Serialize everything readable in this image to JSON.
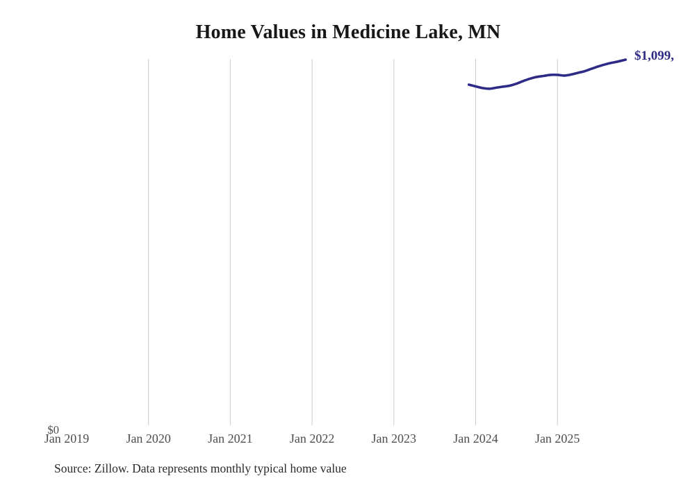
{
  "title": "Home Values in Medicine Lake, MN",
  "source_note": "Source: Zillow. Data represents monthly typical home value",
  "colors": {
    "line": "#2e2b87",
    "end_label": "#2e2b87",
    "gridline": "#cccccc",
    "axis_text": "#4d4d4d",
    "title_text": "#171717",
    "source_text": "#2b2b2b",
    "background": "#ffffff"
  },
  "chart_data": {
    "type": "line",
    "title": "Home Values in Medicine Lake, MN",
    "xlabel": "",
    "ylabel": "",
    "legend": "none",
    "grid": "vertical-only",
    "ylim": [
      0,
      1105000
    ],
    "y_tick_labels": [
      "$0"
    ],
    "x_tick_labels": [
      "Jan 2019",
      "Jan 2020",
      "Jan 2021",
      "Jan 2022",
      "Jan 2023",
      "Jan 2024",
      "Jan 2025"
    ],
    "end_label": "$1,099,",
    "series_months": [
      "Dec 2023",
      "Jan 2024",
      "Feb 2024",
      "Mar 2024",
      "Apr 2024",
      "May 2024",
      "Jun 2024",
      "Jul 2024",
      "Aug 2024",
      "Sep 2024",
      "Oct 2024",
      "Nov 2024",
      "Dec 2024",
      "Jan 2025",
      "Feb 2025",
      "Mar 2025",
      "Apr 2025",
      "May 2025",
      "Jun 2025",
      "Jul 2025",
      "Aug 2025",
      "Sep 2025",
      "Oct 2025",
      "Nov 2025"
    ],
    "values": [
      1025000,
      1020000,
      1015000,
      1013000,
      1016000,
      1019000,
      1022000,
      1028000,
      1036000,
      1043000,
      1048000,
      1051000,
      1054000,
      1054000,
      1052000,
      1055000,
      1060000,
      1065000,
      1072000,
      1079000,
      1085000,
      1090000,
      1094000,
      1099000
    ]
  }
}
